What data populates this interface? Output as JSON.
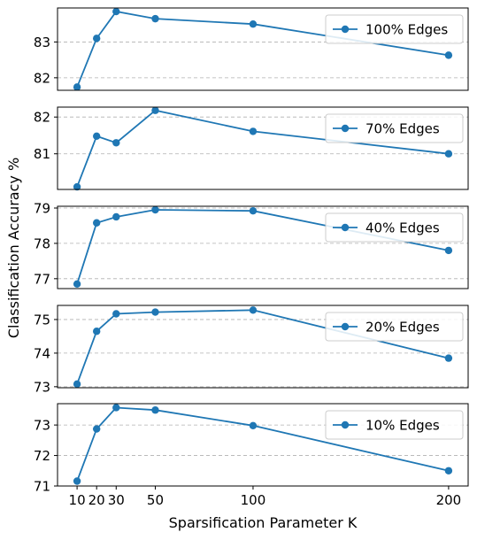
{
  "ylabel": "Classification Accuracy %",
  "xlabel": "Sparsification Parameter K",
  "colors": {
    "line": "#1f77b4",
    "grid": "#b0b0b0",
    "axis": "#000000"
  },
  "chart_data": [
    {
      "type": "line",
      "name": "100% Edges",
      "x": [
        10,
        20,
        30,
        50,
        100,
        200
      ],
      "values": [
        81.74,
        83.1,
        83.85,
        83.65,
        83.5,
        82.63
      ],
      "ylim": [
        81.65,
        83.95
      ],
      "yticks": [
        82,
        83
      ],
      "grid": "y-dashed",
      "legend": "upper-right"
    },
    {
      "type": "line",
      "name": "70% Edges",
      "x": [
        10,
        20,
        30,
        50,
        100,
        200
      ],
      "values": [
        80.1,
        81.48,
        81.3,
        82.18,
        81.61,
        81.0
      ],
      "ylim": [
        80.03,
        82.27
      ],
      "yticks": [
        81,
        82
      ],
      "grid": "y-dashed",
      "legend": "upper-right"
    },
    {
      "type": "line",
      "name": "40% Edges",
      "x": [
        10,
        20,
        30,
        50,
        100,
        200
      ],
      "values": [
        76.85,
        78.58,
        78.75,
        78.95,
        78.92,
        77.8
      ],
      "ylim": [
        76.72,
        79.05
      ],
      "yticks": [
        77,
        78,
        79
      ],
      "grid": "y-dashed",
      "legend": "upper-right"
    },
    {
      "type": "line",
      "name": "20% Edges",
      "x": [
        10,
        20,
        30,
        50,
        100,
        200
      ],
      "values": [
        73.08,
        74.65,
        75.17,
        75.22,
        75.28,
        73.85
      ],
      "ylim": [
        72.97,
        75.42
      ],
      "yticks": [
        73,
        74,
        75
      ],
      "grid": "y-dashed",
      "legend": "upper-right"
    },
    {
      "type": "line",
      "name": "10% Edges",
      "x": [
        10,
        20,
        30,
        50,
        100,
        200
      ],
      "values": [
        71.16,
        72.87,
        73.57,
        73.49,
        72.98,
        71.5
      ],
      "ylim": [
        71.0,
        73.7
      ],
      "yticks": [
        71,
        72,
        73
      ],
      "grid": "y-dashed",
      "legend": "upper-right"
    }
  ],
  "xaxis": {
    "ticks": [
      10,
      20,
      30,
      50,
      100,
      200
    ],
    "tick_labels": [
      "10",
      "20",
      "30",
      "50",
      "100",
      "200"
    ],
    "xlim": [
      0,
      210
    ]
  }
}
